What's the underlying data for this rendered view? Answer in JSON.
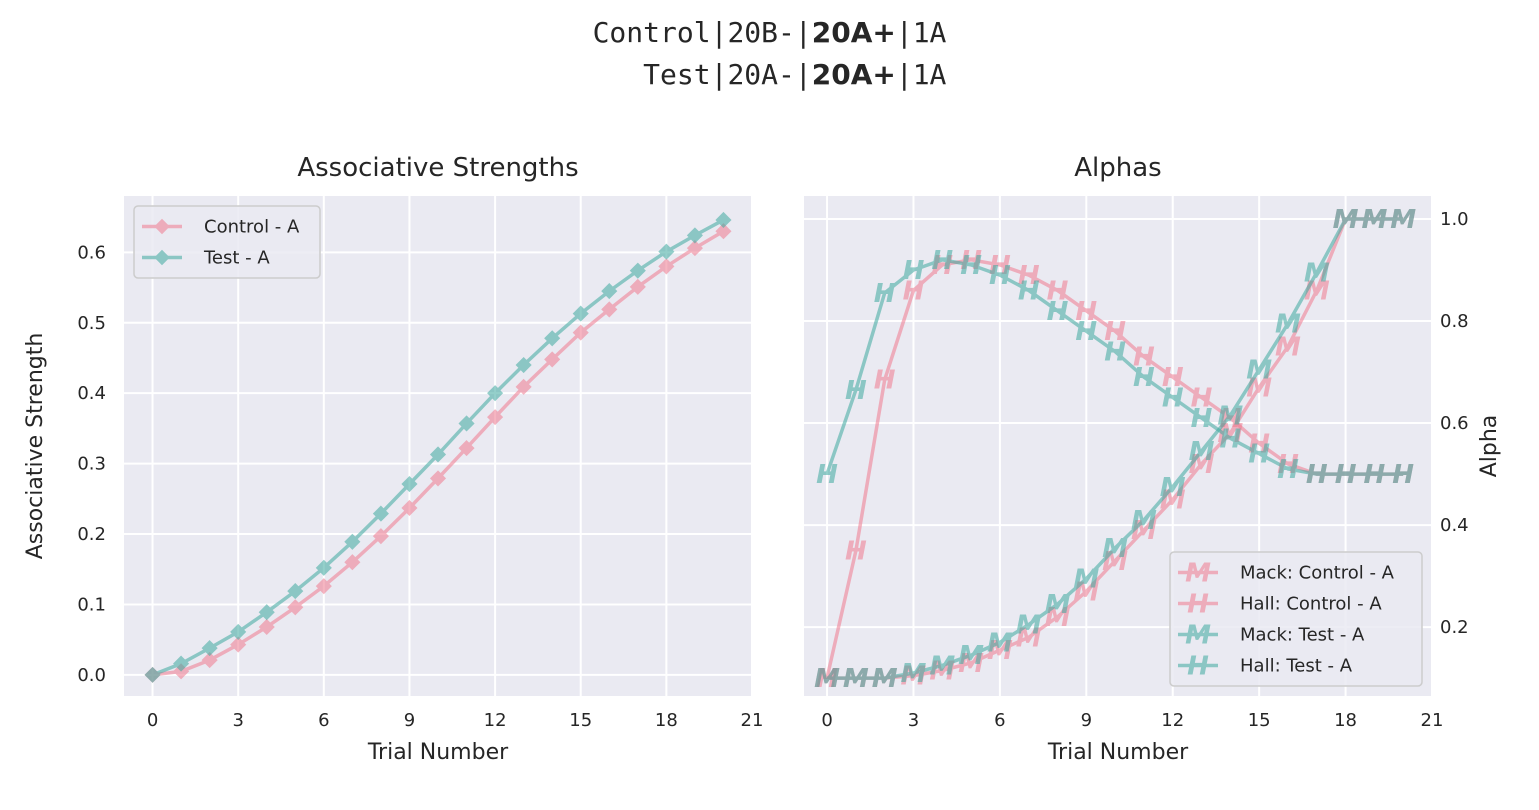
{
  "suptitle": {
    "line1": {
      "prefix": "Control|20B-|",
      "bold": "20A+",
      "suffix": "|1A"
    },
    "line2": {
      "prefix": "   Test|20A-|",
      "bold": "20A+",
      "suffix": "|1A"
    }
  },
  "colors": {
    "control": "#f07a8f",
    "test": "#3ea99f",
    "panel_bg": "#eaeaf2",
    "grid": "#ffffff"
  },
  "chart_data": [
    {
      "type": "line",
      "title": "Associative Strengths",
      "xlabel": "Trial Number",
      "ylabel": "Associative Strength",
      "xlim": [
        -1,
        21
      ],
      "ylim": [
        -0.03,
        0.68
      ],
      "xticks": [
        0,
        3,
        6,
        9,
        12,
        15,
        18,
        21
      ],
      "yticks": [
        0.0,
        0.1,
        0.2,
        0.3,
        0.4,
        0.5,
        0.6
      ],
      "grid": true,
      "legend": "top-left",
      "x": [
        0,
        1,
        2,
        3,
        4,
        5,
        6,
        7,
        8,
        9,
        10,
        11,
        12,
        13,
        14,
        15,
        16,
        17,
        18,
        19,
        20
      ],
      "series": [
        {
          "name": "Control - A",
          "color": "control",
          "marker": "diamond",
          "values": [
            0.0,
            0.005,
            0.021,
            0.043,
            0.068,
            0.096,
            0.126,
            0.16,
            0.197,
            0.237,
            0.279,
            0.322,
            0.366,
            0.409,
            0.448,
            0.486,
            0.519,
            0.551,
            0.58,
            0.606,
            0.63
          ]
        },
        {
          "name": "Test - A",
          "color": "test",
          "marker": "diamond",
          "values": [
            0.0,
            0.016,
            0.038,
            0.061,
            0.089,
            0.119,
            0.152,
            0.189,
            0.229,
            0.271,
            0.313,
            0.357,
            0.4,
            0.44,
            0.478,
            0.513,
            0.545,
            0.574,
            0.601,
            0.624,
            0.646
          ]
        }
      ]
    },
    {
      "type": "line",
      "title": "Alphas",
      "xlabel": "Trial Number",
      "ylabel": "Alpha",
      "xlim": [
        -0.8,
        21
      ],
      "ylim": [
        0.065,
        1.045
      ],
      "xticks": [
        0,
        3,
        6,
        9,
        12,
        15,
        18,
        21
      ],
      "yticks": [
        0.2,
        0.4,
        0.6,
        0.8,
        1.0
      ],
      "y_axis_side": "right",
      "grid": true,
      "legend": "bottom-right",
      "x": [
        0,
        1,
        2,
        3,
        4,
        5,
        6,
        7,
        8,
        9,
        10,
        11,
        12,
        13,
        14,
        15,
        16,
        17,
        18,
        19,
        20
      ],
      "series": [
        {
          "name": "Mack: Control - A",
          "color": "control",
          "marker": "M",
          "values": [
            0.1,
            0.1,
            0.1,
            0.105,
            0.115,
            0.13,
            0.155,
            0.18,
            0.22,
            0.27,
            0.33,
            0.39,
            0.45,
            0.52,
            0.58,
            0.67,
            0.75,
            0.86,
            1.0,
            1.0,
            1.0
          ]
        },
        {
          "name": "Hall: Control - A",
          "color": "control",
          "marker": "H",
          "values": [
            0.1,
            0.35,
            0.685,
            0.86,
            0.91,
            0.92,
            0.91,
            0.89,
            0.86,
            0.82,
            0.78,
            0.73,
            0.69,
            0.65,
            0.61,
            0.56,
            0.52,
            0.5,
            0.5,
            0.5,
            0.5
          ]
        },
        {
          "name": "Mack: Test - A",
          "color": "test",
          "marker": "M",
          "values": [
            0.1,
            0.1,
            0.1,
            0.11,
            0.125,
            0.145,
            0.17,
            0.205,
            0.245,
            0.295,
            0.355,
            0.41,
            0.475,
            0.545,
            0.615,
            0.705,
            0.795,
            0.895,
            1.0,
            1.0,
            1.0
          ]
        },
        {
          "name": "Hall: Test - A",
          "color": "test",
          "marker": "H",
          "values": [
            0.5,
            0.665,
            0.855,
            0.9,
            0.92,
            0.91,
            0.89,
            0.86,
            0.82,
            0.78,
            0.74,
            0.69,
            0.65,
            0.61,
            0.57,
            0.54,
            0.51,
            0.5,
            0.5,
            0.5,
            0.5
          ]
        }
      ]
    }
  ]
}
